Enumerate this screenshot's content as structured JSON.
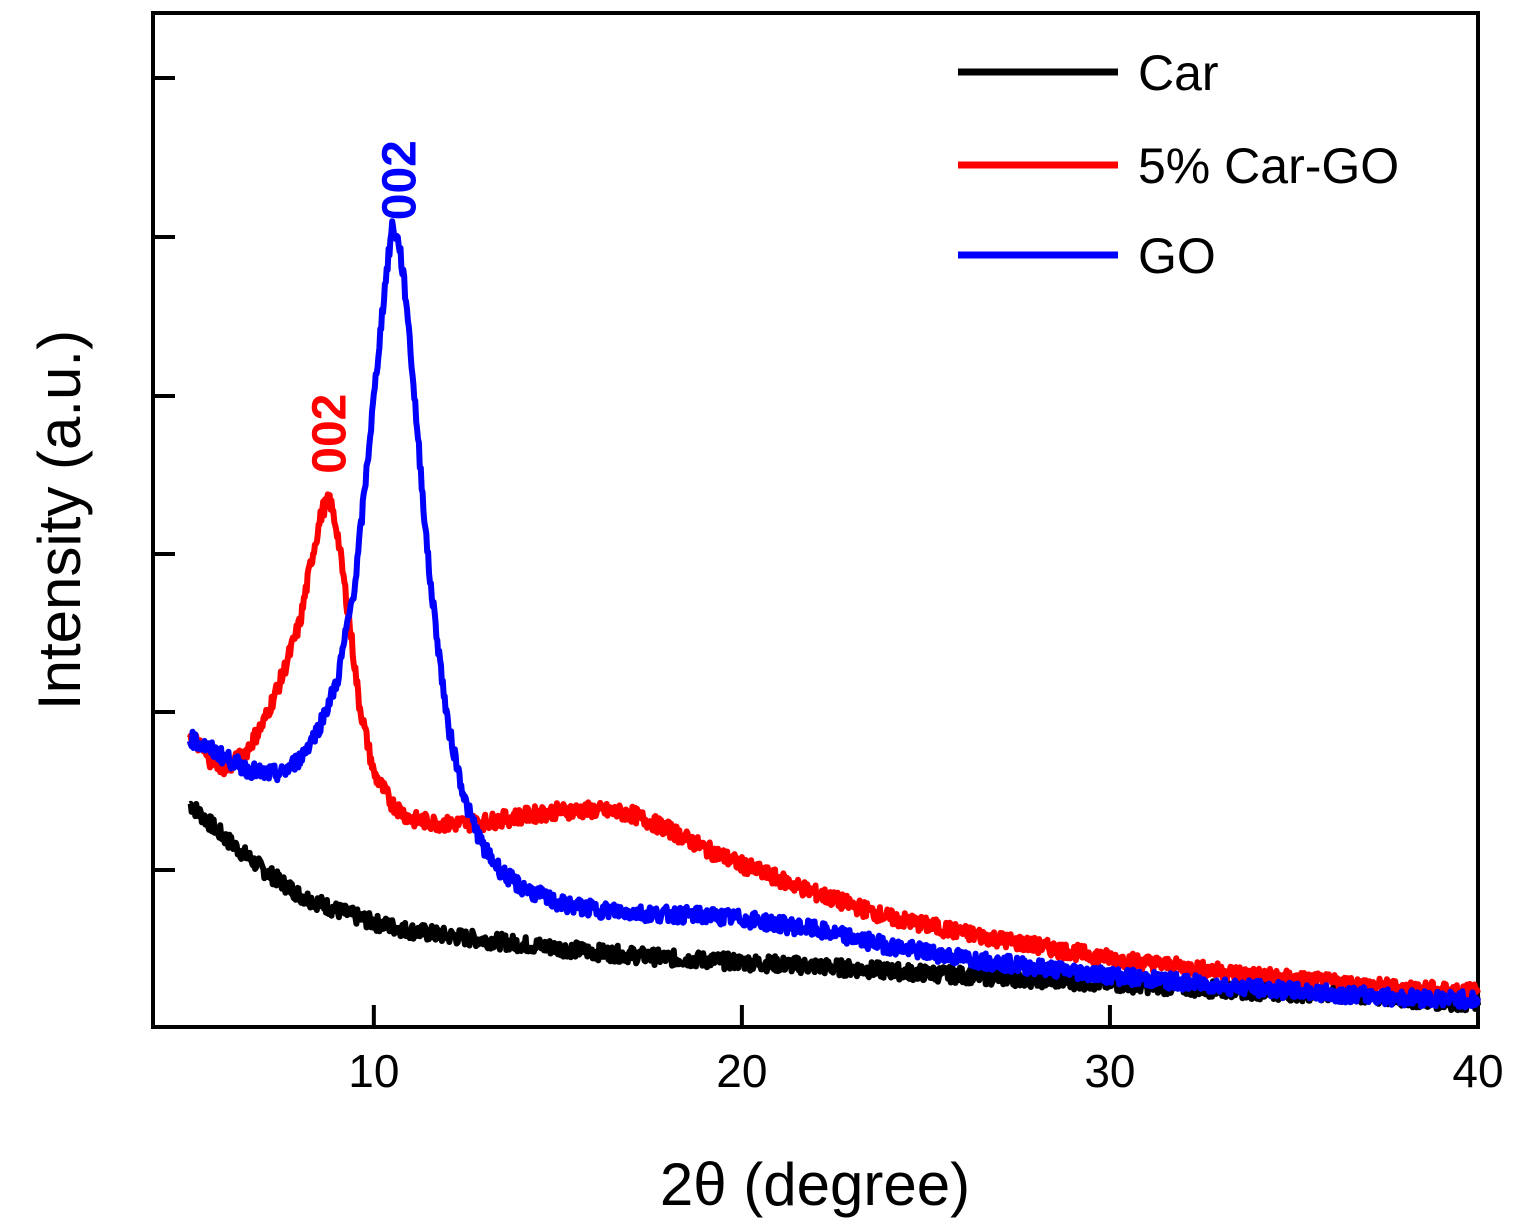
{
  "chart_data": {
    "type": "line",
    "xlabel": "2θ (degree)",
    "ylabel": "Intensity (a.u.)",
    "xlim": [
      4,
      40
    ],
    "ylim": [
      0,
      100
    ],
    "x_ticks": [
      10,
      20,
      30,
      40
    ],
    "x_tick_labels": [
      "10",
      "20",
      "30",
      "40"
    ],
    "y_tick_labels_shown": false,
    "legend_position": "top-right",
    "series": [
      {
        "name": "Car",
        "color": "#000000",
        "x": [
          5,
          6,
          7,
          8,
          9,
          10,
          11,
          12,
          13,
          14,
          15,
          16,
          18,
          20,
          22,
          25,
          28,
          30,
          33,
          36,
          40
        ],
        "values": [
          22,
          18.5,
          15.5,
          13,
          11.5,
          10.3,
          9.5,
          9,
          8.6,
          8.2,
          7.8,
          7.4,
          6.8,
          6.4,
          6,
          5.3,
          4.7,
          4.3,
          3.7,
          3.2,
          2.3
        ]
      },
      {
        "name": "5% Car-GO",
        "color": "#ff0000",
        "x": [
          5,
          5.5,
          6,
          6.5,
          7,
          7.5,
          8,
          8.3,
          8.6,
          8.8,
          9.0,
          9.3,
          9.6,
          10,
          10.5,
          11,
          12,
          13,
          14,
          15,
          16,
          17,
          18,
          19,
          20,
          22,
          24,
          26,
          28,
          30,
          32,
          34,
          36,
          38,
          40
        ],
        "values": [
          29,
          26.5,
          25.5,
          27,
          30,
          34.5,
          40,
          46,
          51,
          52,
          49,
          41,
          32,
          25,
          22,
          20.5,
          20,
          20.2,
          20.8,
          21.3,
          21.4,
          21,
          19.5,
          17.6,
          16,
          13.2,
          10.8,
          9.3,
          8,
          6.8,
          5.9,
          5.1,
          4.4,
          3.8,
          3.5
        ]
      },
      {
        "name": "GO",
        "color": "#0000ff",
        "x": [
          5,
          5.5,
          6,
          6.5,
          7,
          7.5,
          8,
          8.5,
          9,
          9.5,
          10,
          10.3,
          10.5,
          10.7,
          10.9,
          11.2,
          11.5,
          12,
          12.5,
          13,
          13.5,
          14,
          15,
          16,
          17,
          18,
          19,
          20,
          22,
          24,
          26,
          28,
          30,
          32,
          34,
          36,
          38,
          40
        ],
        "values": [
          28.5,
          27.5,
          26.5,
          25.5,
          25,
          25,
          26.5,
          29.5,
          34,
          44,
          62,
          73,
          79,
          77,
          71,
          58,
          45,
          30,
          22,
          17.5,
          15.2,
          13.8,
          12.2,
          11.6,
          11.3,
          11.1,
          11,
          10.7,
          9.6,
          8,
          6.8,
          5.9,
          5.1,
          4.4,
          3.8,
          3.3,
          2.9,
          2.7
        ]
      }
    ],
    "annotations": [
      {
        "text": "002",
        "series": "5% Car-GO",
        "x": 8.8,
        "color": "#ff0000"
      },
      {
        "text": "002",
        "series": "GO",
        "x": 10.7,
        "color": "#0000ff"
      }
    ]
  }
}
